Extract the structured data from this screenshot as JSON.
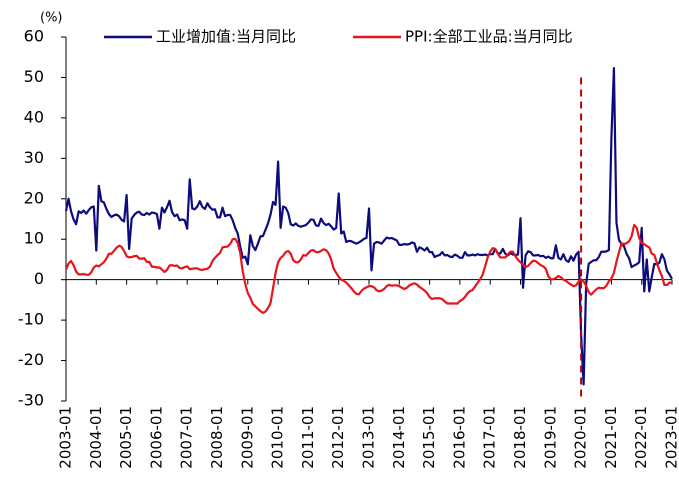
{
  "chart_data": {
    "type": "line",
    "y_label": "(%)",
    "categories": [
      "2003-01",
      null,
      null,
      null,
      null,
      null,
      null,
      null,
      null,
      null,
      null,
      null,
      "2004-01",
      null,
      null,
      null,
      null,
      null,
      null,
      null,
      null,
      null,
      null,
      null,
      "2005-01",
      null,
      null,
      null,
      null,
      null,
      null,
      null,
      null,
      null,
      null,
      null,
      "2006-01",
      null,
      null,
      null,
      null,
      null,
      null,
      null,
      null,
      null,
      null,
      null,
      "2007-01",
      null,
      null,
      null,
      null,
      null,
      null,
      null,
      null,
      null,
      null,
      null,
      "2008-01",
      null,
      null,
      null,
      null,
      null,
      null,
      null,
      null,
      null,
      null,
      null,
      "2009-01",
      null,
      null,
      null,
      null,
      null,
      null,
      null,
      null,
      null,
      null,
      null,
      "2010-01",
      null,
      null,
      null,
      null,
      null,
      null,
      null,
      null,
      null,
      null,
      null,
      "2011-01",
      null,
      null,
      null,
      null,
      null,
      null,
      null,
      null,
      null,
      null,
      null,
      "2012-01",
      null,
      null,
      null,
      null,
      null,
      null,
      null,
      null,
      null,
      null,
      null,
      "2013-01",
      null,
      null,
      null,
      null,
      null,
      null,
      null,
      null,
      null,
      null,
      null,
      "2014-01",
      null,
      null,
      null,
      null,
      null,
      null,
      null,
      null,
      null,
      null,
      null,
      "2015-01",
      null,
      null,
      null,
      null,
      null,
      null,
      null,
      null,
      null,
      null,
      null,
      "2016-01",
      null,
      null,
      null,
      null,
      null,
      null,
      null,
      null,
      null,
      null,
      null,
      "2017-01",
      null,
      null,
      null,
      null,
      null,
      null,
      null,
      null,
      null,
      null,
      null,
      "2018-01",
      null,
      null,
      null,
      null,
      null,
      null,
      null,
      null,
      null,
      null,
      null,
      "2019-01",
      null,
      null,
      null,
      null,
      null,
      null,
      null,
      null,
      null,
      null,
      null,
      "2020-01",
      null,
      null,
      null,
      null,
      null,
      null,
      null,
      null,
      null,
      null,
      null,
      "2021-01",
      null,
      null,
      null,
      null,
      null,
      null,
      null,
      null,
      null,
      null,
      null,
      "2022-01",
      null,
      null,
      null,
      null,
      null,
      null,
      null,
      null,
      null,
      null,
      null,
      "2023-01"
    ],
    "series": [
      {
        "name": "工业增加值:当月同比",
        "color": "#0c0c7c",
        "values": [
          17,
          20,
          16.9,
          14.9,
          13.7,
          16.9,
          16.5,
          17.1,
          16.3,
          17.2,
          17.9,
          18.1,
          7.2,
          23.2,
          19.4,
          19.1,
          17.5,
          16.2,
          15.5,
          15.9,
          16.1,
          15.7,
          14.8,
          14.4,
          20.9,
          7.6,
          15.1,
          16,
          16.6,
          16.8,
          16.1,
          16,
          16.5,
          16.1,
          16.6,
          16.5,
          16.2,
          12.6,
          17.8,
          16.6,
          17.9,
          19.5,
          16.7,
          15.7,
          16.1,
          14.7,
          14.9,
          14.7,
          12.6,
          24.8,
          17.6,
          17.4,
          18.1,
          19.4,
          18,
          17.5,
          18.9,
          17.9,
          17.3,
          17.4,
          15.4,
          15.4,
          17.8,
          15.7,
          16,
          16,
          14.7,
          12.8,
          11.4,
          8.2,
          5.4,
          5.7,
          3.8,
          11,
          8.3,
          7.3,
          8.9,
          10.7,
          10.8,
          12.3,
          13.9,
          16.1,
          19.2,
          18.5,
          29.2,
          12.8,
          18.1,
          17.8,
          16.5,
          13.7,
          13.4,
          13.9,
          13.3,
          13.1,
          13.3,
          13.5,
          14.1,
          14.9,
          14.8,
          13.4,
          13.3,
          15.1,
          14,
          13.5,
          13.8,
          13.2,
          12.4,
          12.8,
          21.3,
          11.4,
          11.9,
          9.3,
          9.6,
          9.5,
          9.2,
          8.9,
          9.2,
          9.6,
          10.1,
          10.3,
          17.6,
          2.3,
          8.9,
          9.3,
          9.2,
          8.9,
          9.7,
          10.4,
          10.2,
          10.3,
          10,
          9.7,
          8.6,
          8.6,
          8.8,
          8.7,
          8.8,
          9.2,
          9,
          6.9,
          8,
          7.7,
          7.2,
          7.9,
          6.8,
          6.8,
          5.6,
          5.9,
          6.1,
          6.8,
          6,
          6.1,
          5.7,
          5.6,
          6.2,
          5.9,
          5.4,
          5.4,
          6.8,
          6,
          6,
          6.2,
          6,
          6.3,
          6.1,
          6.1,
          6.2,
          6,
          6.3,
          6.3,
          7.6,
          6.5,
          6.5,
          7.6,
          6.4,
          6,
          6.6,
          6.2,
          6.1,
          6.2,
          15.2,
          -2,
          6,
          7,
          6.8,
          6,
          6,
          6.1,
          5.8,
          5.9,
          5.4,
          5.7,
          5.3,
          5.3,
          8.5,
          5.4,
          5,
          6.3,
          4.8,
          4.4,
          5.8,
          4.7,
          6.2,
          6.9,
          -13.5,
          -25.9,
          -1.1,
          3.9,
          4.4,
          4.8,
          4.8,
          5.6,
          6.9,
          6.9,
          7,
          7.3,
          35.1,
          52.3,
          14.1,
          9.8,
          8.8,
          8.3,
          6.4,
          5.3,
          3.1,
          3.5,
          3.8,
          4.3,
          12.8,
          -2.9,
          5,
          -2.9,
          0.7,
          3.9,
          3.8,
          4.2,
          6.3,
          5,
          2.2,
          1.3,
          0.2
        ]
      },
      {
        "name": "PPI:全部工业品:当月同比",
        "color": "#e8141b",
        "values": [
          2.5,
          4,
          4.6,
          3.6,
          2,
          1.3,
          1.3,
          1.4,
          1.2,
          1.2,
          1.8,
          3,
          3.5,
          3.3,
          3.8,
          4.3,
          5.2,
          6.4,
          6.4,
          7.1,
          7.9,
          8.4,
          8.1,
          7.1,
          5.8,
          5.5,
          5.6,
          5.8,
          5.9,
          5.2,
          5.2,
          5.3,
          4.4,
          4.4,
          3.2,
          3.2,
          3,
          3,
          2.5,
          1.9,
          2.4,
          3.5,
          3.6,
          3.4,
          3.5,
          2.9,
          2.8,
          3.1,
          3.3,
          2.6,
          2.7,
          2.8,
          2.8,
          2.5,
          2.4,
          2.6,
          2.7,
          3.2,
          4.6,
          5.4,
          6.1,
          6.6,
          8,
          8.1,
          8.2,
          8.8,
          10,
          10.1,
          9.1,
          6.6,
          2,
          -1.1,
          -3.3,
          -4.5,
          -6,
          -6.6,
          -7.2,
          -7.8,
          -8.2,
          -7.9,
          -7,
          -5.8,
          -2.1,
          1.7,
          4.3,
          5.4,
          5.9,
          6.8,
          7.1,
          6.4,
          4.8,
          4.3,
          4.3,
          5,
          6.1,
          5.9,
          6.6,
          7.2,
          7.3,
          6.8,
          6.8,
          7.1,
          7.5,
          7.3,
          6.5,
          5,
          2.7,
          1.7,
          0.7,
          0,
          -0.3,
          -0.7,
          -1.4,
          -2.1,
          -2.9,
          -3.5,
          -3.6,
          -2.8,
          -2.2,
          -1.9,
          -1.6,
          -1.6,
          -1.9,
          -2.6,
          -2.9,
          -2.7,
          -2.3,
          -1.6,
          -1.3,
          -1.5,
          -1.4,
          -1.4,
          -1.6,
          -2,
          -2.3,
          -2,
          -1.4,
          -1.1,
          -0.9,
          -1.2,
          -1.8,
          -2.2,
          -2.7,
          -3.3,
          -4.3,
          -4.8,
          -4.6,
          -4.6,
          -4.6,
          -4.8,
          -5.4,
          -5.9,
          -5.9,
          -5.9,
          -5.9,
          -5.9,
          -5.3,
          -4.9,
          -4.3,
          -3.4,
          -2.8,
          -2.6,
          -1.7,
          -0.8,
          0.1,
          1.2,
          3.3,
          5.5,
          6.9,
          7.8,
          7.6,
          6.4,
          5.5,
          5.5,
          5.5,
          6.3,
          6.9,
          6.9,
          5.8,
          4.9,
          4.3,
          3.7,
          3.1,
          3.4,
          4.1,
          4.7,
          4.6,
          4.1,
          3.6,
          3.3,
          2.7,
          0.9,
          0.1,
          0.1,
          0.4,
          0.9,
          0.6,
          0,
          -0.3,
          -0.8,
          -1.2,
          -1.6,
          -1.4,
          -0.5,
          0.1,
          -0.4,
          -1.5,
          -3.1,
          -3.7,
          -3,
          -2.4,
          -2,
          -2.1,
          -2.1,
          -1.5,
          -0.4,
          0.3,
          1.7,
          4.4,
          6.8,
          9,
          8.8,
          9,
          9.5,
          10.7,
          13.5,
          12.9,
          10.3,
          9.1,
          8.8,
          8.3,
          8,
          6.4,
          6.1,
          4.2,
          2.3,
          0.9,
          -1.3,
          -1.3,
          -0.7,
          -0.8
        ]
      }
    ],
    "ylim": [
      -30,
      60
    ],
    "yticks": [
      -30,
      -20,
      -10,
      0,
      10,
      20,
      30,
      40,
      50,
      60
    ],
    "vline": {
      "x": "2020-01",
      "color": "#c00000",
      "ylim": [
        -30,
        50
      ]
    },
    "legend": "top"
  }
}
